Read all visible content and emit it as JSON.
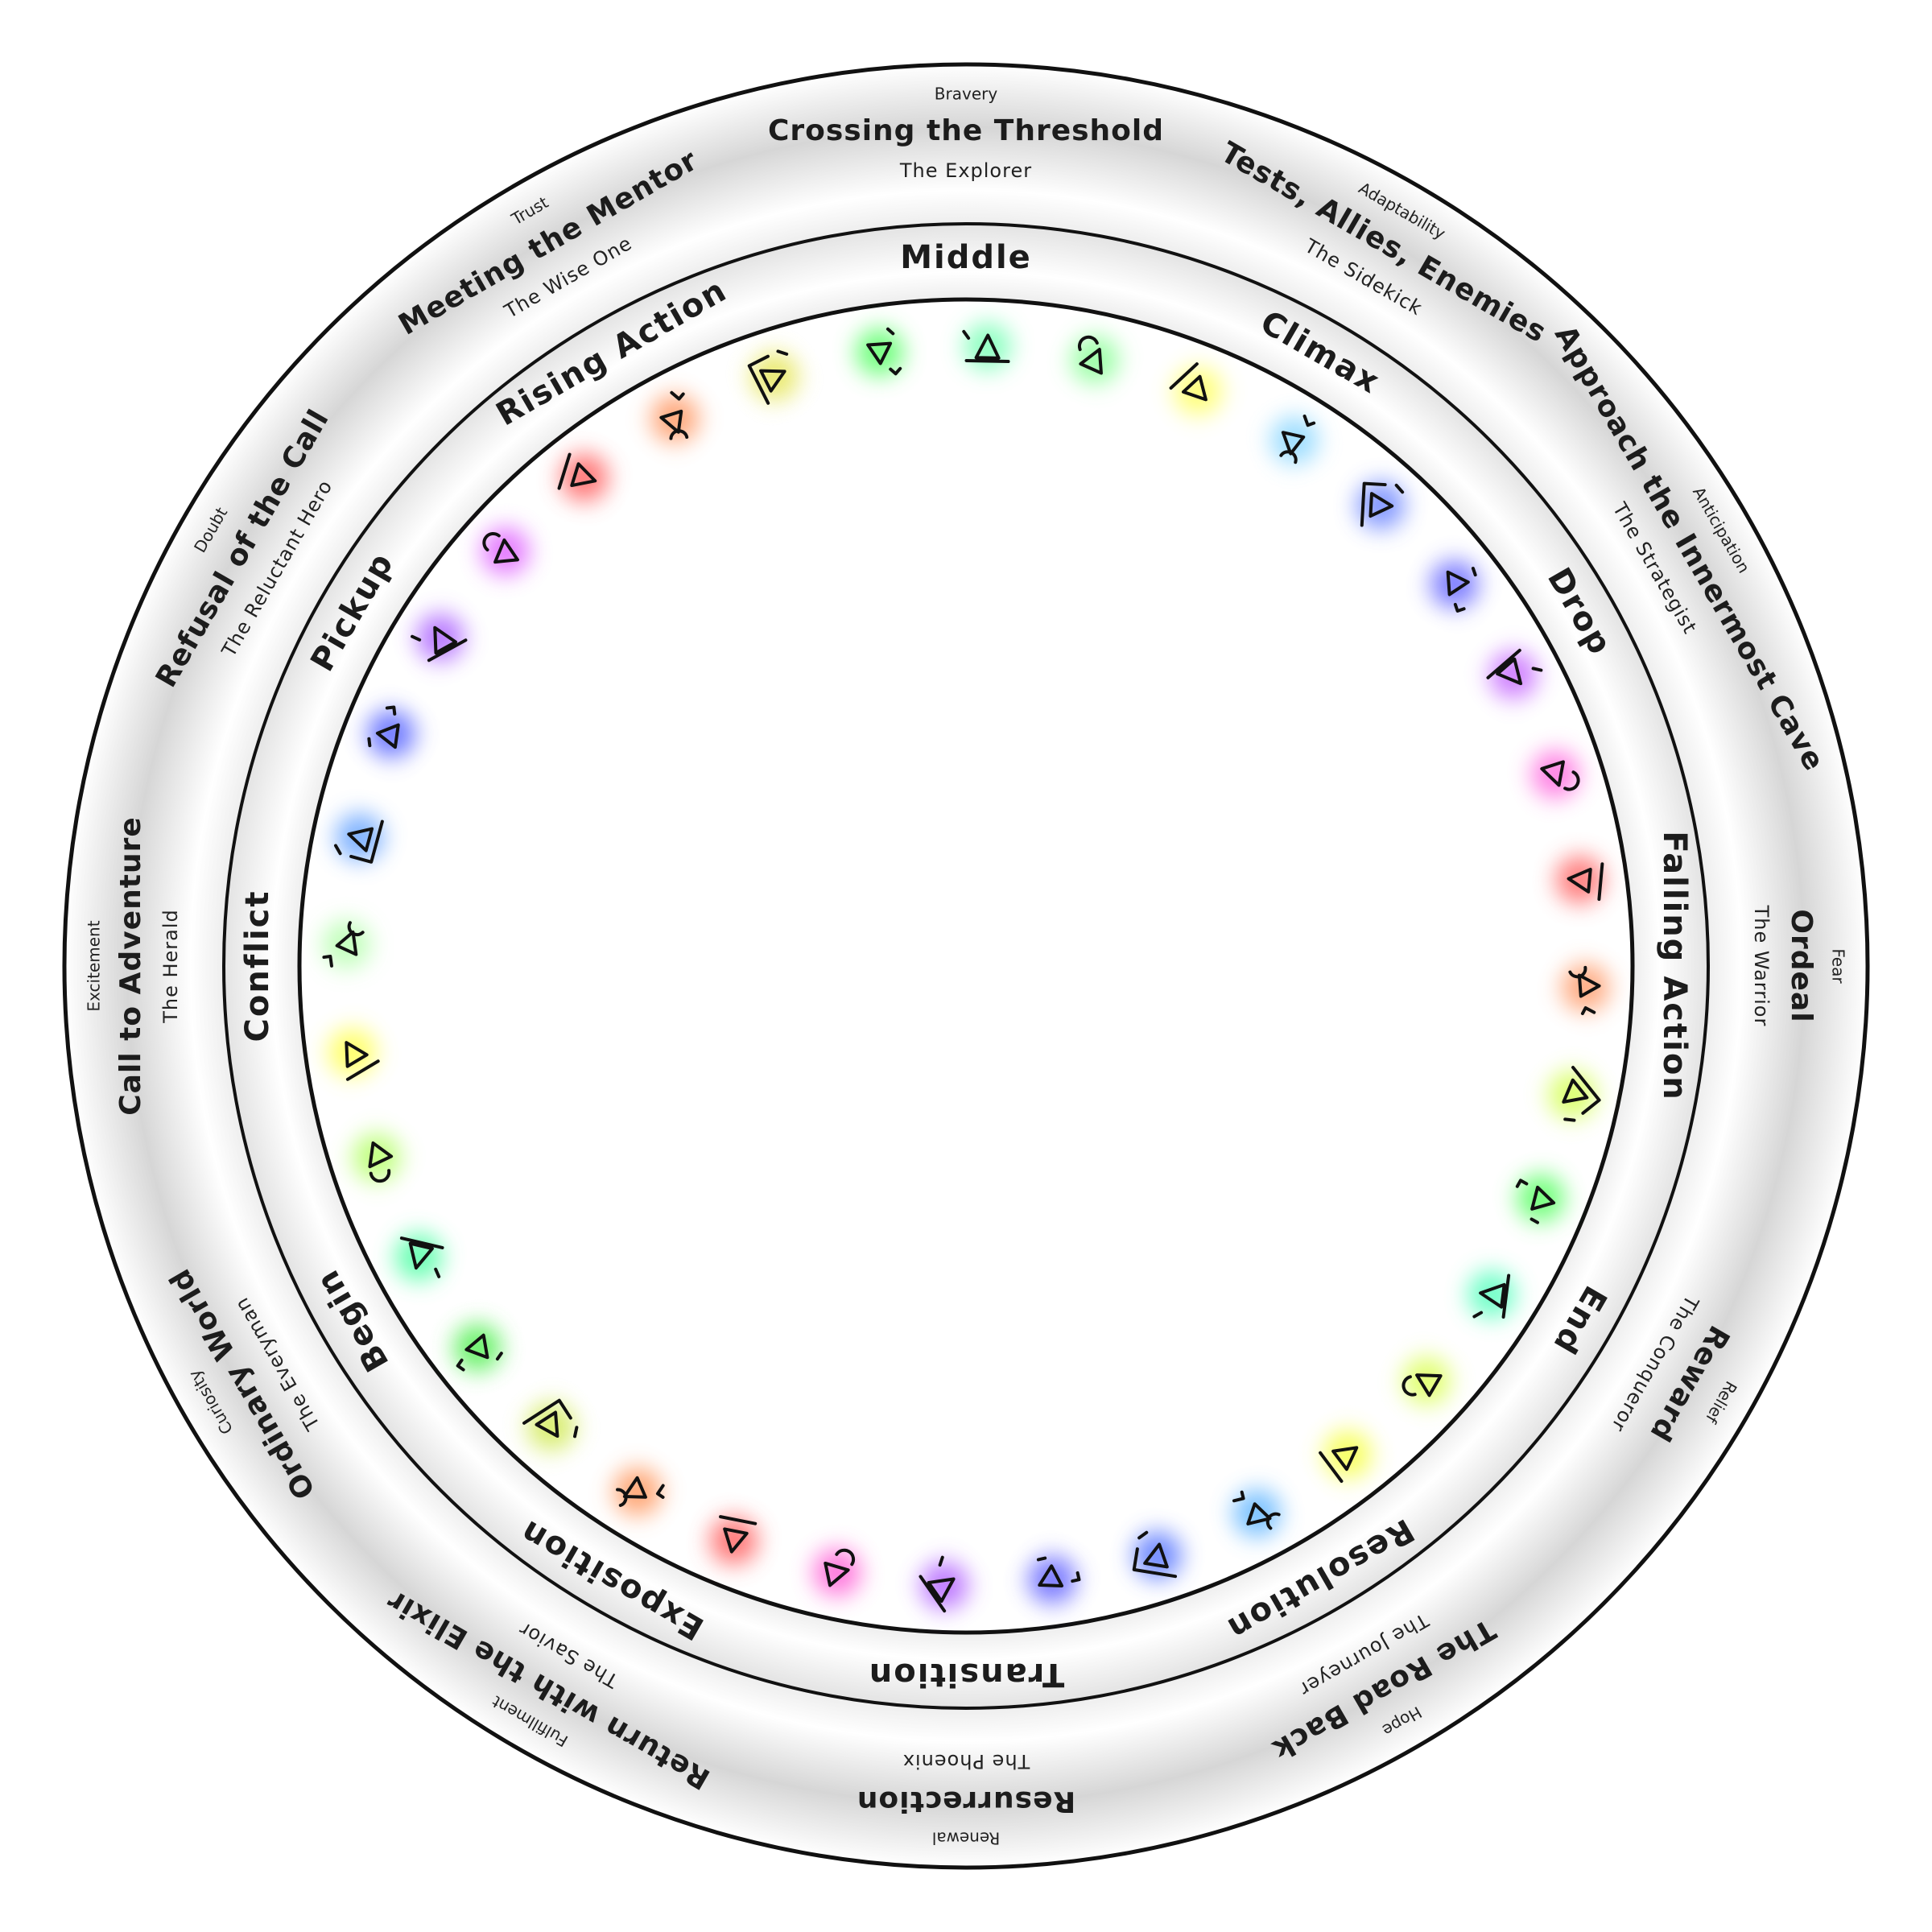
{
  "stages": [
    {
      "title": "Crossing the Threshold",
      "emotion": "Bravery",
      "archetype": "The Explorer"
    },
    {
      "title": "Tests, Allies, Enemies",
      "emotion": "Adaptability",
      "archetype": "The Sidekick"
    },
    {
      "title": "Approach the Innermost Cave",
      "emotion": "Anticipation",
      "archetype": "The Strategist"
    },
    {
      "title": "Ordeal",
      "emotion": "Fear",
      "archetype": "The Warrior"
    },
    {
      "title": "Reward",
      "emotion": "Relief",
      "archetype": "The Conqueror"
    },
    {
      "title": "The Road Back",
      "emotion": "Hope",
      "archetype": "The Journeyer"
    },
    {
      "title": "Resurrection",
      "emotion": "Renewal",
      "archetype": "The Phoenix"
    },
    {
      "title": "Return with the Elixir",
      "emotion": "Fulfillment",
      "archetype": "The Savior"
    },
    {
      "title": "Ordinary World",
      "emotion": "Curiosity",
      "archetype": "The Everyman"
    },
    {
      "title": "Call to Adventure",
      "emotion": "Excitement",
      "archetype": "The Herald"
    },
    {
      "title": "Refusal of the Call",
      "emotion": "Doubt",
      "archetype": "The Reluctant Hero"
    },
    {
      "title": "Meeting the Mentor",
      "emotion": "Trust",
      "archetype": "The Wise One"
    }
  ],
  "acts": [
    "Middle",
    "Climax",
    "Drop",
    "Falling Action",
    "End",
    "Resolution",
    "Transition",
    "Exposition",
    "Begin",
    "Conflict",
    "Pickup",
    "Rising Action"
  ],
  "beats": {
    "count": 36,
    "colors": [
      "#7dffb8",
      "#8dff9a",
      "#ffff66",
      "#8ed8ff",
      "#6f88ff",
      "#6a6aff",
      "#c86dff",
      "#ff70e0",
      "#ff6a6a",
      "#ff9f70",
      "#d6ff5a",
      "#5cff66",
      "#5cffc0",
      "#dcff5a",
      "#f6ff4a",
      "#66b8ff",
      "#5a78ff",
      "#6666ff",
      "#b466ff",
      "#ff66d8",
      "#ff6464",
      "#ff9a62",
      "#d2ea5a",
      "#55f055",
      "#55ffa8",
      "#b6ff6a",
      "#ffff55",
      "#b8ffb0",
      "#6aa6ff",
      "#5a66ff",
      "#ae66ff",
      "#e066ff",
      "#ff6464",
      "#ff9a66",
      "#e6e65a",
      "#5cff6a"
    ]
  }
}
